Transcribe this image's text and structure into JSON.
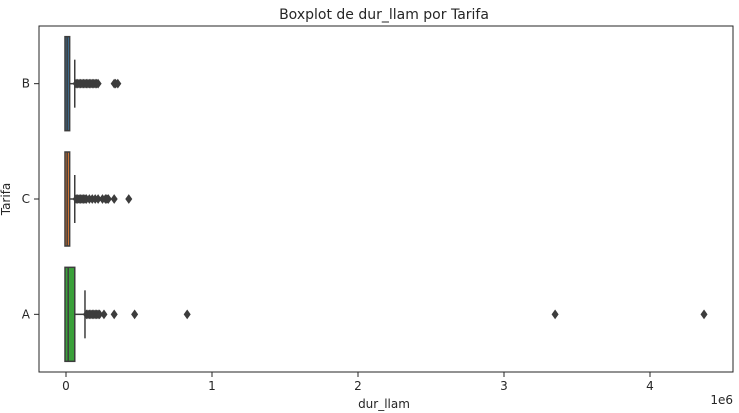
{
  "chart_data": {
    "type": "boxplot",
    "orientation": "horizontal",
    "title": "Boxplot de dur_llam por Tarifa",
    "xlabel": "dur_llam",
    "ylabel": "Tarifa",
    "x_offset_label": "1e6",
    "xlim": [
      -0.05,
      4.6
    ],
    "x_ticks": [
      0,
      1,
      2,
      3,
      4
    ],
    "x_tick_labels": [
      "0",
      "1",
      "2",
      "3",
      "4"
    ],
    "categories": [
      "B",
      "C",
      "A"
    ],
    "grid": false,
    "legend": "none",
    "series": [
      {
        "category": "B",
        "color": "#3b6e94",
        "whisker_low": 0,
        "q1": 0.0,
        "median": 0.008,
        "q3": 0.025,
        "whisker_high": 0.06,
        "outliers": [
          0.07,
          0.08,
          0.09,
          0.1,
          0.11,
          0.12,
          0.13,
          0.14,
          0.15,
          0.16,
          0.17,
          0.18,
          0.19,
          0.2,
          0.21,
          0.22,
          0.33,
          0.34,
          0.355
        ]
      },
      {
        "category": "C",
        "color": "#e07a33",
        "whisker_low": 0,
        "q1": 0.0,
        "median": 0.008,
        "q3": 0.025,
        "whisker_high": 0.06,
        "outliers": [
          0.07,
          0.08,
          0.09,
          0.1,
          0.11,
          0.12,
          0.13,
          0.14,
          0.16,
          0.18,
          0.2,
          0.22,
          0.25,
          0.27,
          0.28,
          0.29,
          0.33,
          0.43
        ]
      },
      {
        "category": "A",
        "color": "#3aa03a",
        "whisker_low": 0,
        "q1": 0.0,
        "median": 0.015,
        "q3": 0.06,
        "whisker_high": 0.13,
        "outliers": [
          0.14,
          0.15,
          0.16,
          0.17,
          0.18,
          0.19,
          0.2,
          0.21,
          0.22,
          0.23,
          0.26,
          0.33,
          0.47,
          0.83,
          3.35,
          4.37
        ]
      }
    ]
  }
}
